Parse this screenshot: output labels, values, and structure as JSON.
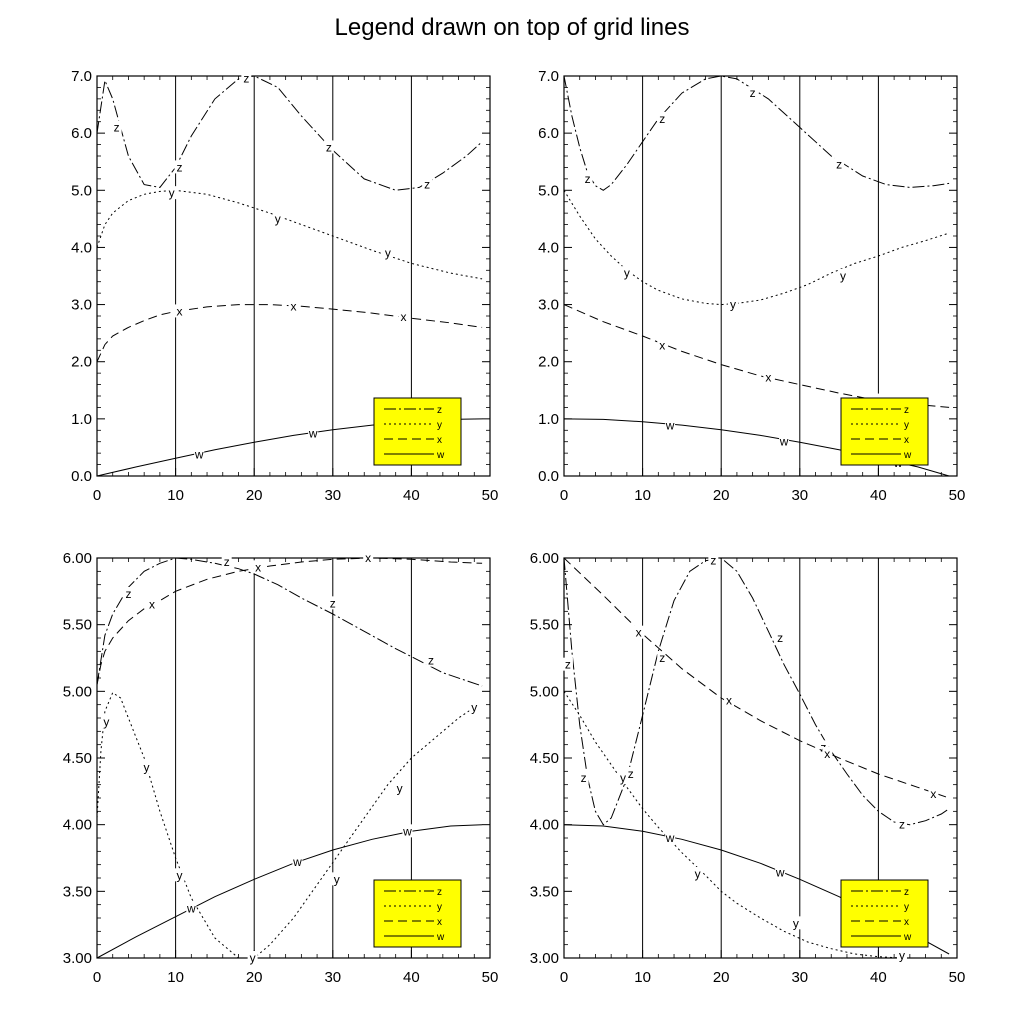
{
  "title": "Legend drawn on top of grid lines",
  "styles": {
    "legend_fill": "#ffff00",
    "line_color": "#000000",
    "dash": {
      "z": "12,3,2,3",
      "y": "2,3",
      "x": "9,5",
      "w": ""
    }
  },
  "chart_data": [
    {
      "type": "line",
      "x_ticks": [
        0,
        10,
        20,
        30,
        40,
        50
      ],
      "y_ticks": [
        "0.0",
        "1.0",
        "2.0",
        "3.0",
        "4.0",
        "5.0",
        "6.0",
        "7.0"
      ],
      "xlim": [
        0,
        50
      ],
      "ylim": [
        0,
        7
      ],
      "grid": "vertical",
      "legend_position": "bottom-right",
      "legend": [
        "z",
        "y",
        "x",
        "w"
      ],
      "series": [
        {
          "name": "z",
          "x": [
            0,
            1,
            2,
            4,
            6,
            8,
            10,
            12,
            15,
            18,
            20,
            23,
            26,
            30,
            34,
            38,
            41,
            44,
            47,
            49
          ],
          "y": [
            6.0,
            6.92,
            6.6,
            5.6,
            5.1,
            5.05,
            5.4,
            5.95,
            6.6,
            6.95,
            7.0,
            6.8,
            6.3,
            5.7,
            5.2,
            5.0,
            5.05,
            5.3,
            5.6,
            5.85
          ],
          "labels": [
            [
              2.5,
              6.1
            ],
            [
              10.5,
              5.4
            ],
            [
              19,
              6.96
            ],
            [
              29.5,
              5.75
            ],
            [
              42,
              5.1
            ]
          ]
        },
        {
          "name": "y",
          "x": [
            0,
            1,
            2,
            4,
            6,
            8,
            10,
            14,
            18,
            22,
            26,
            30,
            35,
            40,
            45,
            49
          ],
          "y": [
            4.0,
            4.4,
            4.6,
            4.82,
            4.93,
            4.98,
            5.0,
            4.93,
            4.78,
            4.6,
            4.4,
            4.2,
            3.95,
            3.72,
            3.55,
            3.45
          ],
          "labels": [
            [
              9.5,
              4.95
            ],
            [
              23,
              4.5
            ],
            [
              37,
              3.9
            ]
          ]
        },
        {
          "name": "x",
          "x": [
            0,
            1,
            2,
            4,
            6,
            8,
            10,
            14,
            18,
            22,
            26,
            30,
            35,
            40,
            45,
            49
          ],
          "y": [
            2.0,
            2.3,
            2.45,
            2.6,
            2.72,
            2.82,
            2.88,
            2.96,
            3.0,
            3.0,
            2.97,
            2.92,
            2.85,
            2.76,
            2.68,
            2.6
          ],
          "labels": [
            [
              10.5,
              2.88
            ],
            [
              25,
              2.97
            ],
            [
              39,
              2.78
            ]
          ]
        },
        {
          "name": "w",
          "x": [
            0,
            5,
            10,
            15,
            20,
            25,
            30,
            35,
            40,
            45,
            49
          ],
          "y": [
            0.0,
            0.16,
            0.31,
            0.46,
            0.59,
            0.71,
            0.81,
            0.89,
            0.95,
            0.99,
            1.0
          ],
          "labels": [
            [
              13,
              0.38
            ],
            [
              27.5,
              0.74
            ],
            [
              43.5,
              0.92
            ]
          ]
        }
      ]
    },
    {
      "type": "line",
      "x_ticks": [
        0,
        10,
        20,
        30,
        40,
        50
      ],
      "y_ticks": [
        "0.0",
        "1.0",
        "2.0",
        "3.0",
        "4.0",
        "5.0",
        "6.0",
        "7.0"
      ],
      "xlim": [
        0,
        50
      ],
      "ylim": [
        0,
        7
      ],
      "grid": "vertical",
      "legend_position": "bottom-right",
      "legend": [
        "z",
        "y",
        "x",
        "w"
      ],
      "series": [
        {
          "name": "z",
          "x": [
            0,
            1,
            2,
            3,
            4,
            5,
            6,
            8,
            10,
            12,
            15,
            18,
            20,
            22,
            26,
            30,
            34,
            38,
            41,
            44,
            47,
            49
          ],
          "y": [
            7.0,
            6.3,
            5.75,
            5.3,
            5.08,
            5.0,
            5.1,
            5.45,
            5.85,
            6.25,
            6.7,
            6.95,
            7.0,
            6.95,
            6.6,
            6.1,
            5.6,
            5.25,
            5.1,
            5.05,
            5.08,
            5.12
          ],
          "labels": [
            [
              3,
              5.2
            ],
            [
              12.5,
              6.25
            ],
            [
              24,
              6.7
            ],
            [
              35,
              5.45
            ]
          ]
        },
        {
          "name": "y",
          "x": [
            0,
            2,
            4,
            6,
            8,
            10,
            12,
            15,
            18,
            20,
            22,
            25,
            28,
            31,
            34,
            37,
            40,
            43,
            46,
            49
          ],
          "y": [
            5.0,
            4.55,
            4.15,
            3.85,
            3.6,
            3.4,
            3.25,
            3.1,
            3.02,
            3.0,
            3.02,
            3.08,
            3.2,
            3.35,
            3.55,
            3.72,
            3.85,
            4.0,
            4.12,
            4.25
          ],
          "labels": [
            [
              8,
              3.55
            ],
            [
              21.5,
              3.0
            ],
            [
              35.5,
              3.5
            ]
          ]
        },
        {
          "name": "x",
          "x": [
            0,
            5,
            10,
            15,
            20,
            25,
            30,
            35,
            40,
            45,
            49
          ],
          "y": [
            3.0,
            2.7,
            2.45,
            2.18,
            1.95,
            1.75,
            1.6,
            1.45,
            1.32,
            1.25,
            1.2
          ],
          "labels": [
            [
              12.5,
              2.28
            ],
            [
              26,
              1.72
            ],
            [
              40,
              1.32
            ]
          ]
        },
        {
          "name": "w",
          "x": [
            0,
            5,
            10,
            15,
            20,
            25,
            30,
            35,
            40,
            45,
            49
          ],
          "y": [
            1.0,
            0.99,
            0.95,
            0.89,
            0.81,
            0.71,
            0.59,
            0.46,
            0.31,
            0.16,
            0.0
          ],
          "labels": [
            [
              13.5,
              0.88
            ],
            [
              28,
              0.6
            ],
            [
              42.5,
              0.23
            ]
          ]
        }
      ]
    },
    {
      "type": "line",
      "x_ticks": [
        0,
        10,
        20,
        30,
        40,
        50
      ],
      "y_ticks": [
        "3.00",
        "3.50",
        "4.00",
        "4.50",
        "5.00",
        "5.50",
        "6.00"
      ],
      "xlim": [
        0,
        50
      ],
      "ylim": [
        3,
        6
      ],
      "grid": "vertical",
      "legend_position": "bottom-right",
      "legend": [
        "z",
        "y",
        "x",
        "w"
      ],
      "series": [
        {
          "name": "z",
          "x": [
            0,
            1,
            2,
            4,
            6,
            8,
            10,
            12,
            15,
            18,
            20,
            23,
            26,
            30,
            34,
            38,
            41,
            44,
            47,
            49
          ],
          "y": [
            5.05,
            5.42,
            5.58,
            5.78,
            5.9,
            5.96,
            6.0,
            5.99,
            5.96,
            5.92,
            5.88,
            5.8,
            5.7,
            5.58,
            5.45,
            5.32,
            5.23,
            5.14,
            5.08,
            5.04
          ],
          "labels": [
            [
              4,
              5.73
            ],
            [
              16.5,
              5.97
            ],
            [
              30,
              5.66
            ],
            [
              42.5,
              5.23
            ]
          ]
        },
        {
          "name": "y",
          "x": [
            0,
            0.5,
            1,
            2,
            3,
            4,
            6,
            8,
            10,
            12,
            15,
            18,
            20,
            22,
            25,
            28,
            31,
            34,
            37,
            40,
            43,
            46,
            48.5
          ],
          "y": [
            4.05,
            4.55,
            4.85,
            4.99,
            4.95,
            4.8,
            4.5,
            4.1,
            3.75,
            3.45,
            3.15,
            3.0,
            3.0,
            3.1,
            3.3,
            3.55,
            3.8,
            4.05,
            4.3,
            4.5,
            4.65,
            4.8,
            4.9
          ],
          "labels": [
            [
              1.2,
              4.77
            ],
            [
              6.3,
              4.43
            ],
            [
              10.5,
              3.62
            ],
            [
              19.8,
              3.0
            ],
            [
              30.5,
              3.59
            ],
            [
              38.5,
              4.27
            ],
            [
              48,
              4.88
            ]
          ]
        },
        {
          "name": "x",
          "x": [
            0,
            0.5,
            1,
            2,
            4,
            6,
            8,
            10,
            14,
            18,
            22,
            26,
            30,
            35,
            40,
            45,
            49
          ],
          "y": [
            5.05,
            5.2,
            5.3,
            5.4,
            5.53,
            5.62,
            5.68,
            5.75,
            5.84,
            5.9,
            5.94,
            5.97,
            5.99,
            6.0,
            5.99,
            5.97,
            5.96
          ],
          "labels": [
            [
              7,
              5.65
            ],
            [
              20.5,
              5.93
            ],
            [
              34.5,
              6.0
            ]
          ]
        },
        {
          "name": "w",
          "x": [
            0,
            5,
            10,
            15,
            20,
            25,
            30,
            35,
            40,
            45,
            49
          ],
          "y": [
            3.0,
            3.16,
            3.31,
            3.46,
            3.59,
            3.71,
            3.81,
            3.89,
            3.95,
            3.99,
            4.0
          ],
          "labels": [
            [
              12,
              3.37
            ],
            [
              25.5,
              3.72
            ],
            [
              39.5,
              3.95
            ]
          ]
        }
      ]
    },
    {
      "type": "line",
      "x_ticks": [
        0,
        10,
        20,
        30,
        40,
        50
      ],
      "y_ticks": [
        "3.00",
        "3.50",
        "4.00",
        "4.50",
        "5.00",
        "5.50",
        "6.00"
      ],
      "xlim": [
        0,
        50
      ],
      "ylim": [
        3,
        6
      ],
      "grid": "vertical",
      "legend_position": "bottom-right",
      "legend": [
        "z",
        "y",
        "x",
        "w"
      ],
      "series": [
        {
          "name": "z",
          "x": [
            0,
            1,
            2,
            3,
            4,
            5,
            6,
            8,
            10,
            12,
            14,
            16,
            18,
            20,
            22,
            24,
            26,
            28,
            30,
            32,
            34,
            36,
            38,
            40,
            42,
            44,
            46,
            48,
            49
          ],
          "y": [
            6.0,
            5.3,
            4.75,
            4.35,
            4.1,
            4.0,
            4.05,
            4.35,
            4.82,
            5.3,
            5.68,
            5.9,
            5.98,
            6.0,
            5.9,
            5.7,
            5.45,
            5.2,
            4.98,
            4.75,
            4.55,
            4.38,
            4.22,
            4.1,
            4.02,
            4.0,
            4.03,
            4.08,
            4.12
          ],
          "labels": [
            [
              0.5,
              5.2
            ],
            [
              2.5,
              4.35
            ],
            [
              8.5,
              4.38
            ],
            [
              12.5,
              5.25
            ],
            [
              19,
              5.98
            ],
            [
              27.5,
              5.4
            ],
            [
              33,
              4.58
            ],
            [
              43,
              4.0
            ]
          ]
        },
        {
          "name": "y",
          "x": [
            0,
            2,
            4,
            6,
            8,
            10,
            12,
            15,
            18,
            20,
            22,
            25,
            28,
            31,
            34,
            37,
            40,
            43,
            46,
            49
          ],
          "y": [
            5.0,
            4.82,
            4.62,
            4.45,
            4.28,
            4.12,
            3.98,
            3.79,
            3.62,
            3.5,
            3.41,
            3.3,
            3.2,
            3.12,
            3.07,
            3.03,
            3.01,
            3.0,
            3.0,
            3.0
          ],
          "labels": [
            [
              7.5,
              4.35
            ],
            [
              17,
              3.63
            ],
            [
              29.5,
              3.26
            ],
            [
              43,
              3.02
            ]
          ]
        },
        {
          "name": "x",
          "x": [
            0,
            5,
            10,
            15,
            20,
            25,
            30,
            35,
            40,
            45,
            49
          ],
          "y": [
            6.0,
            5.72,
            5.43,
            5.17,
            4.95,
            4.78,
            4.63,
            4.5,
            4.38,
            4.28,
            4.2
          ],
          "labels": [
            [
              9.5,
              5.44
            ],
            [
              21,
              4.93
            ],
            [
              33.5,
              4.53
            ],
            [
              47,
              4.23
            ]
          ]
        },
        {
          "name": "w",
          "x": [
            0,
            5,
            10,
            15,
            20,
            25,
            30,
            35,
            40,
            45,
            49
          ],
          "y": [
            4.0,
            3.99,
            3.95,
            3.89,
            3.81,
            3.71,
            3.59,
            3.46,
            3.31,
            3.16,
            3.03
          ],
          "labels": [
            [
              13.5,
              3.9
            ],
            [
              27.5,
              3.64
            ]
          ]
        }
      ]
    }
  ]
}
